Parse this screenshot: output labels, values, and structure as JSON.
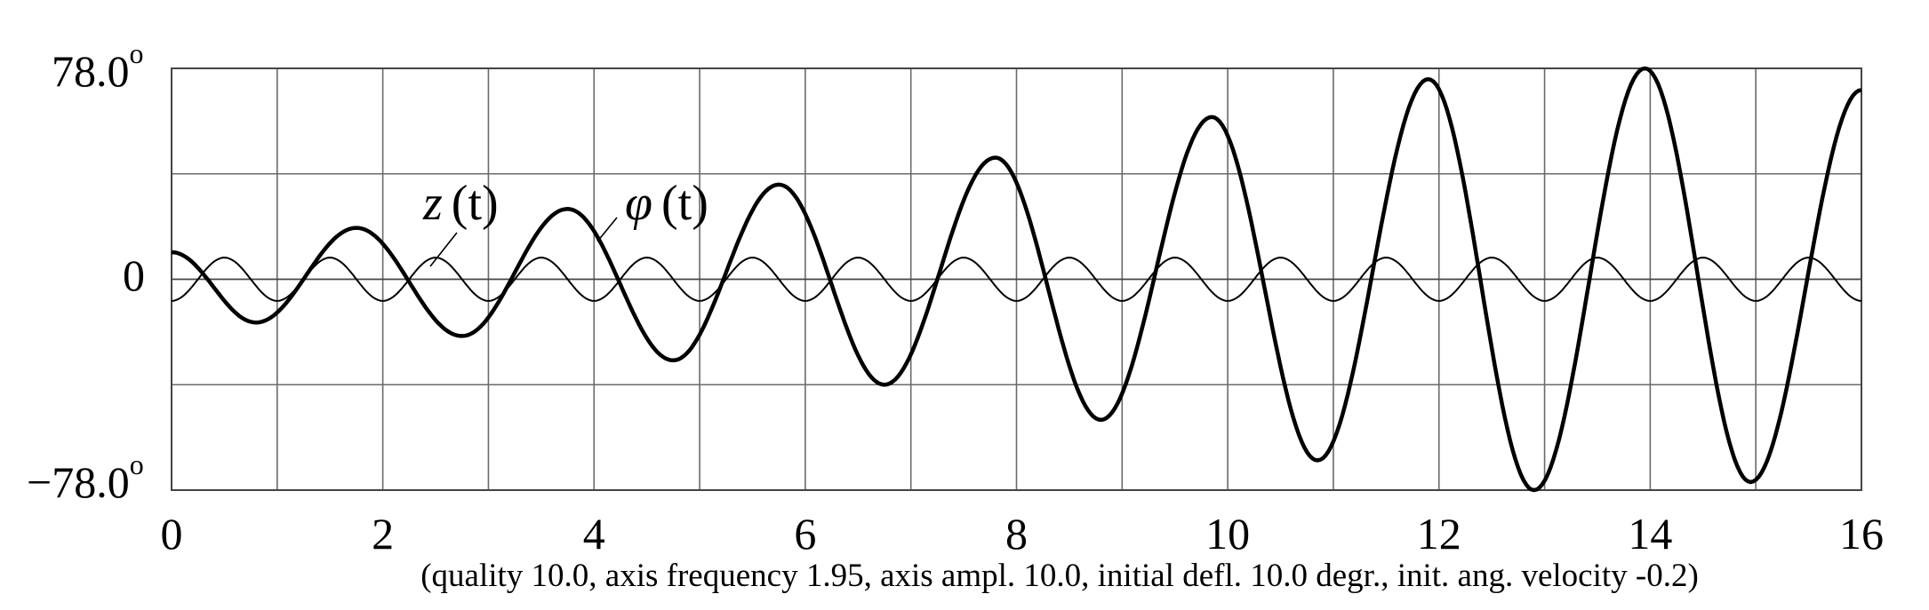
{
  "chart_data": {
    "type": "line",
    "title": "",
    "xlabel": "",
    "ylabel": "",
    "xlim": [
      0,
      16
    ],
    "ylim": [
      -78.0,
      78.0
    ],
    "grid": true,
    "x_ticks": [
      "0",
      "2",
      "4",
      "6",
      "8",
      "10",
      "12",
      "14",
      "16"
    ],
    "y_ticks": {
      "top": "78.0",
      "zero": "0",
      "bottom": "−78.0"
    },
    "y_unit": "o",
    "caption": "(quality 10.0,  axis frequency 1.95, axis ampl. 10.0,  initial defl. 10.0 degr.,  init. ang. velocity -0.2)",
    "series": [
      {
        "name": "φ(t)",
        "label_base": "φ",
        "label_arg": "(t)",
        "style": "thick",
        "x": [
          0,
          0.8,
          1.75,
          2.75,
          3.75,
          4.75,
          5.75,
          6.75,
          7.8,
          8.8,
          9.85,
          10.85,
          11.9,
          12.9,
          13.95,
          14.95,
          16
        ],
        "y": [
          10,
          -16,
          19,
          -21,
          26,
          -30,
          35,
          -39,
          45,
          -52,
          60,
          -67,
          74,
          -78,
          78,
          -75,
          70
        ]
      },
      {
        "name": "z(t)",
        "label_base": "z",
        "label_arg": "(t)",
        "style": "thin",
        "amplitude": 8,
        "period": 1.0,
        "phase_start": -8
      }
    ]
  }
}
